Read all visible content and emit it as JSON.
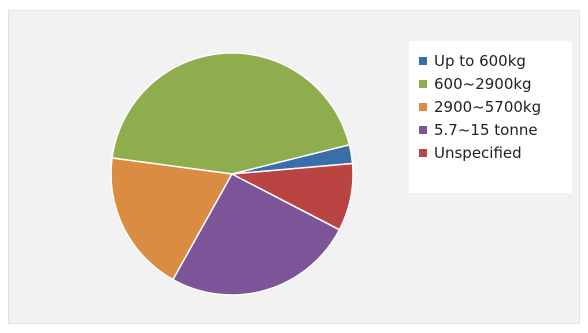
{
  "chart_data": {
    "type": "pie",
    "title": "",
    "categories": [
      "Up to 600kg",
      "600~2900kg",
      "2900~5700kg",
      "5.7~15 tonne",
      "Unspecified"
    ],
    "values": [
      2.5,
      44.0,
      19.0,
      25.5,
      9.0
    ],
    "colors": [
      "#3a6ea8",
      "#8fad4c",
      "#d98c42",
      "#7b5597",
      "#b94441"
    ],
    "start_angle_deg": 5,
    "direction": "counterclockwise",
    "legend": {
      "position": "top-right"
    }
  }
}
